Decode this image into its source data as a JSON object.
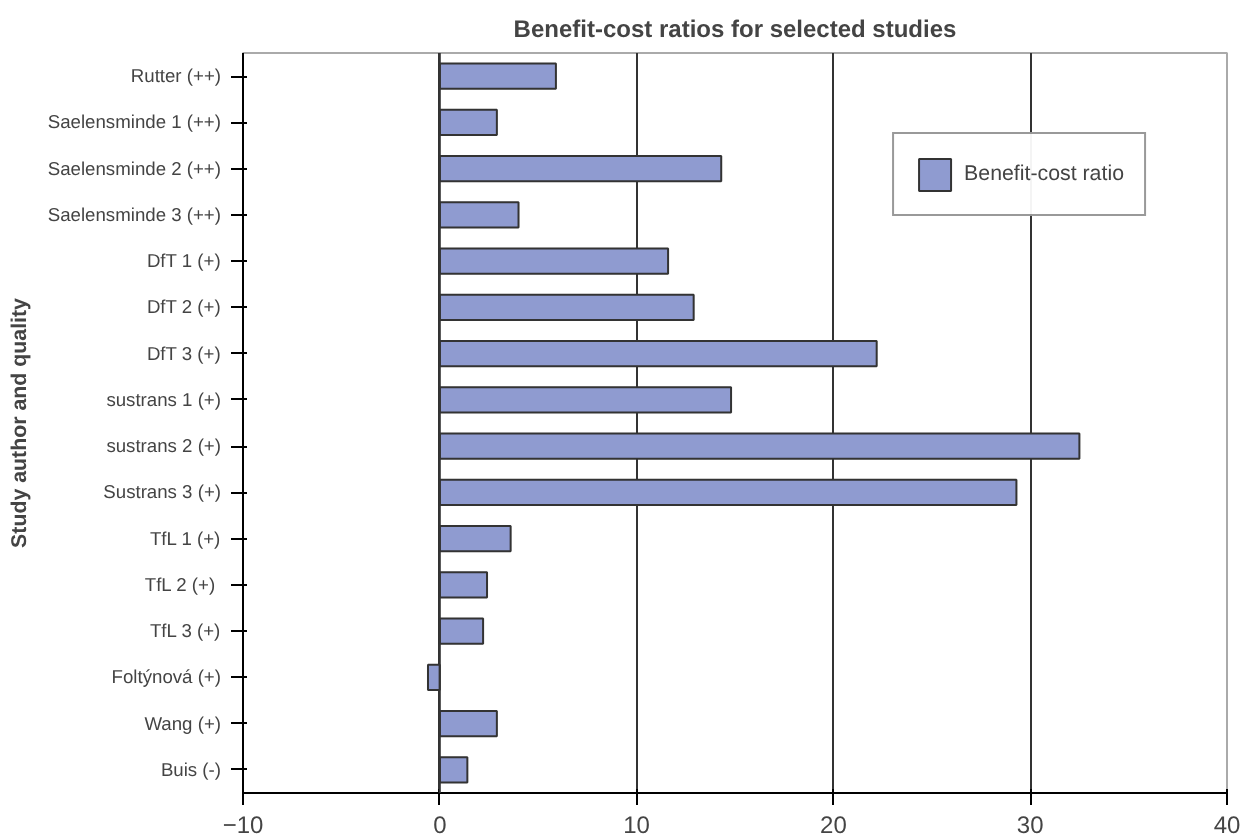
{
  "chart_data": {
    "type": "bar",
    "orientation": "horizontal",
    "title": "Benefit-cost ratios for selected studies",
    "ylabel": "Study author and quality",
    "categories": [
      "Rutter (++)",
      "Saelensminde 1 (++)",
      "Saelensminde 2 (++)",
      "Saelensminde 3 (++)",
      "DfT 1 (+)",
      "DfT 2 (+)",
      "DfT 3 (+)",
      "sustrans 1 (+)",
      "sustrans 2 (+)",
      "Sustrans 3 (+)",
      "TfL 1 (+)",
      "TfL  2 (+)",
      "TfL 3 (+)",
      "Foltýnová (+)",
      "Wang (+)",
      "Buis (-)"
    ],
    "series": [
      {
        "name": "Benefit-cost ratio",
        "color": "#8f9bd0",
        "values": [
          5.9,
          2.9,
          14.3,
          4.0,
          11.6,
          12.9,
          22.2,
          14.8,
          32.5,
          29.3,
          3.6,
          2.4,
          2.2,
          -0.6,
          2.9,
          1.4
        ]
      }
    ],
    "xlim": [
      -10,
      40
    ],
    "xticks": [
      -10,
      0,
      10,
      20,
      30,
      40
    ],
    "grid": "x",
    "legend": "top right"
  }
}
